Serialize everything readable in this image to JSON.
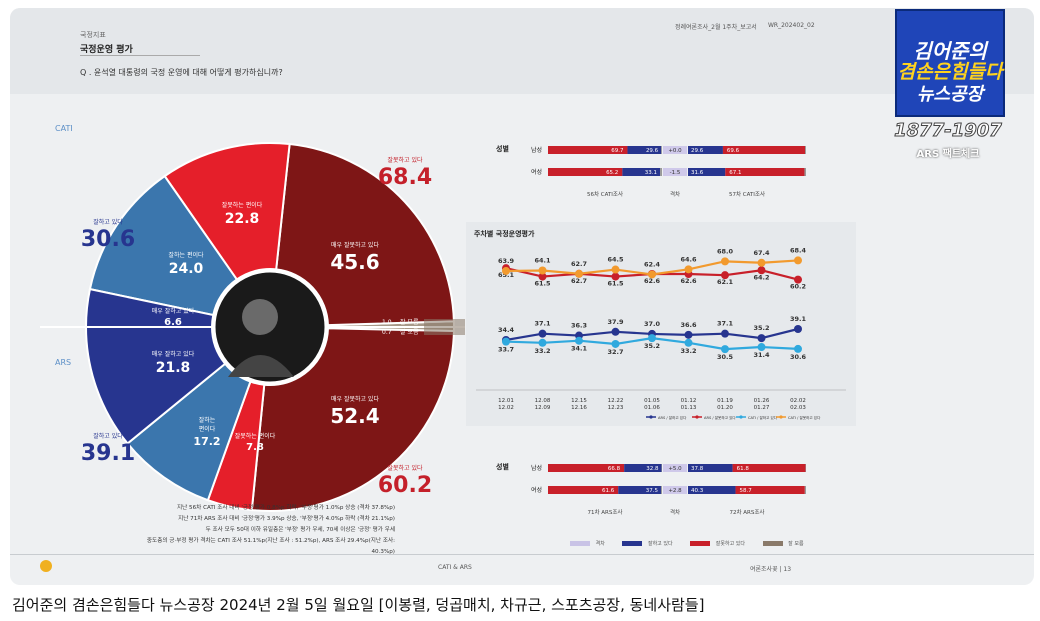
{
  "report": {
    "section": "국정지표",
    "title": "국정운영 평가",
    "question": "Q . 윤석열 대통령의 국정 운영에 대해 어떻게 평가하십니까?",
    "header_right": "정례여론조사_2월 1주차_보고서",
    "report_code": "WR_202402_02",
    "footer_center": "CATI & ARS",
    "footer_right": "여론조사꽃 | 13"
  },
  "labels": {
    "cati": "CATI",
    "ars": "ARS",
    "dont_know": "잘 모름"
  },
  "colors": {
    "dark_red": "#7e1616",
    "red": "#e51f2a",
    "dark_blue": "#27358f",
    "mid_blue": "#3b76ad",
    "gray": "#a79888",
    "chart_panel": "#e6e9ec"
  },
  "chart_data": [
    {
      "type": "pie",
      "name": "CATI",
      "slices": [
        {
          "label": "매우 잘못하고 있다",
          "value": 45.6,
          "color": "#7e1616"
        },
        {
          "label": "잘못하는 편이다",
          "value": 22.8,
          "color": "#e51f2a"
        },
        {
          "label": "잘하는 편이다",
          "value": 24.0,
          "color": "#3b76ad"
        },
        {
          "label": "매우 잘하고 있다",
          "value": 6.6,
          "color": "#27358f"
        },
        {
          "label": "잘 모름",
          "value": 1.0,
          "color": "#a79888"
        }
      ],
      "totals": [
        {
          "label": "잘못하고 있다",
          "value": 68.4
        },
        {
          "label": "잘하고 있다",
          "value": 30.6
        }
      ]
    },
    {
      "type": "pie",
      "name": "ARS",
      "slices": [
        {
          "label": "매우 잘못하고 있다",
          "value": 52.4,
          "color": "#7e1616"
        },
        {
          "label": "잘못하는 편이다",
          "value": 7.8,
          "color": "#e51f2a"
        },
        {
          "label": "잘하는 편이다",
          "value": 17.2,
          "color": "#3b76ad"
        },
        {
          "label": "매우 잘하고 있다",
          "value": 21.8,
          "color": "#27358f"
        },
        {
          "label": "잘 모름",
          "value": 0.7,
          "color": "#a79888"
        }
      ],
      "totals": [
        {
          "label": "잘못하고 있다",
          "value": 60.2
        },
        {
          "label": "잘하고 있다",
          "value": 39.1
        }
      ]
    },
    {
      "type": "line",
      "title": "주차별 국정운영평가",
      "categories": [
        "12.01\n12.02",
        "12.08\n12.09",
        "12.15\n12.16",
        "12.22\n12.23",
        "01.05\n01.06",
        "01.12\n01.13",
        "01.19\n01.20",
        "01.26\n01.27",
        "02.02\n02.03"
      ],
      "ylim": [
        25,
        72
      ],
      "series": [
        {
          "name": "ARS / 잘하고 있다",
          "color": "#27358f",
          "values": [
            34.4,
            37.1,
            36.3,
            37.9,
            37.0,
            36.6,
            37.1,
            35.2,
            39.1
          ]
        },
        {
          "name": "ARS / 잘못하고 있다",
          "color": "#c8202a",
          "values": [
            65.1,
            61.5,
            62.7,
            61.5,
            62.6,
            62.6,
            62.1,
            64.2,
            60.2
          ]
        },
        {
          "name": "CATI / 잘하고 있다",
          "color": "#30a9de",
          "values": [
            33.7,
            33.2,
            34.1,
            32.7,
            35.2,
            33.2,
            30.5,
            31.4,
            30.6
          ]
        },
        {
          "name": "CATI / 잘못하고 있다",
          "color": "#f29a2e",
          "values": [
            63.9,
            64.1,
            62.7,
            64.5,
            62.4,
            64.6,
            68.0,
            67.4,
            68.4
          ]
        }
      ]
    },
    {
      "type": "bar",
      "name": "성별 (CATI)",
      "row_header": "성별",
      "rows": [
        {
          "group": "남성",
          "left": {
            "neg": 69.7,
            "pos": 29.6
          },
          "diff": "+0.0",
          "right": {
            "pos": 29.6,
            "neg": 69.6
          }
        },
        {
          "group": "여성",
          "left": {
            "neg": 65.2,
            "pos": 33.1
          },
          "diff": "-1.5",
          "right": {
            "pos": 31.6,
            "neg": 67.1
          }
        }
      ],
      "left_caption": "56차 CATI조사",
      "diff_caption": "격차",
      "right_caption": "57차 CATI조사"
    },
    {
      "type": "bar",
      "name": "성별 (ARS)",
      "row_header": "성별",
      "rows": [
        {
          "group": "남성",
          "left": {
            "neg": 66.8,
            "pos": 32.8
          },
          "diff": "+5.0",
          "right": {
            "pos": 37.8,
            "neg": 61.8
          }
        },
        {
          "group": "여성",
          "left": {
            "neg": 61.6,
            "pos": 37.5
          },
          "diff": "+2.8",
          "right": {
            "pos": 40.3,
            "neg": 58.7
          }
        }
      ],
      "left_caption": "71차 ARS조사",
      "diff_caption": "격차",
      "right_caption": "72차 ARS조사"
    }
  ],
  "notes": [
    "지난 56차 CATI 조사 대비 '긍정'평가 0.8%p 하락, '부정'평가 1.0%p 상승 (격차 37.8%p)",
    "지난 71차 ARS 조사 대비 '긍정'평가 3.9%p 상승, '부정'평가 4.0%p 하락 (격차 21.1%p)",
    "두 조사 모두 50대 이하 유일층은 '부정' 평가 우세, 70세 이상은 '긍정' 평가 우세",
    "중도층의 긍·부정 평가 격차는 CATI 조사 51.1%p(지난 조사 : 51.2%p), ARS 조사 29.4%p(지난 조사: 40.3%p)"
  ],
  "legend_bottom": [
    "격차",
    "잘하고 있다",
    "잘못하고 있다",
    "잘 모름"
  ],
  "line_legend": [
    "ARS / 잘하고 있다",
    "ARS / 잘못하고 있다",
    "CATI / 잘하고 있다",
    "CATI / 잘못하고 있다"
  ],
  "badge": {
    "line1": "김어준의",
    "line2": "겸손은힘들다",
    "line3": "뉴스공장",
    "years": "1877-1907",
    "live": "ARS 팩트체크"
  },
  "caption": "김어준의 겸손은힘들다 뉴스공장 2024년 2월 5일 월요일 [이봉렬, 덩곱매치, 차규근, 스포츠공장, 동네사람들]"
}
